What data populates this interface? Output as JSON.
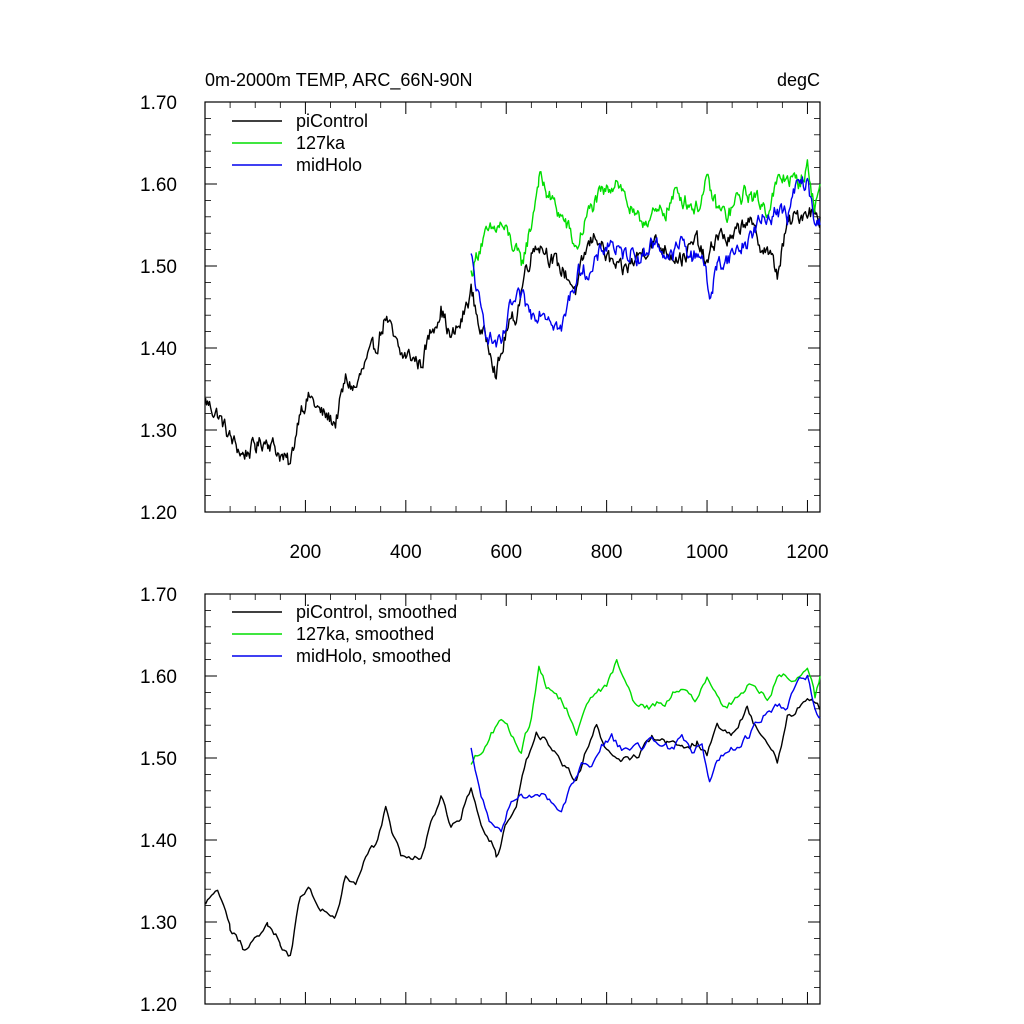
{
  "chart_data": [
    {
      "type": "line",
      "title": "0m-2000m TEMP, ARC_66N-90N",
      "units": "degC",
      "xlim": [
        0,
        1225
      ],
      "ylim": [
        1.2,
        1.7
      ],
      "yticks": [
        "1.20",
        "1.30",
        "1.40",
        "1.50",
        "1.60",
        "1.70"
      ],
      "ytick_values": [
        1.2,
        1.3,
        1.4,
        1.5,
        1.6,
        1.7
      ],
      "xticks": [
        "200",
        "400",
        "600",
        "800",
        "1000",
        "1200"
      ],
      "xtick_values": [
        200,
        400,
        600,
        800,
        1000,
        1200
      ],
      "show_xtick_labels": true,
      "legend_position": "top-left",
      "series": [
        {
          "name": "piControl",
          "color": "#000000",
          "x": [
            1,
            25,
            50,
            75,
            100,
            125,
            150,
            170,
            190,
            210,
            230,
            260,
            280,
            300,
            320,
            340,
            360,
            375,
            390,
            410,
            430,
            450,
            470,
            490,
            510,
            530,
            550,
            570,
            580,
            590,
            600,
            620,
            640,
            660,
            680,
            700,
            720,
            740,
            760,
            780,
            800,
            830,
            860,
            890,
            920,
            950,
            980,
            1000,
            1020,
            1050,
            1080,
            1100,
            1120,
            1140,
            1160,
            1180,
            1200,
            1225
          ],
          "values": [
            1.335,
            1.32,
            1.29,
            1.27,
            1.28,
            1.29,
            1.27,
            1.255,
            1.33,
            1.34,
            1.32,
            1.31,
            1.36,
            1.35,
            1.38,
            1.4,
            1.44,
            1.41,
            1.39,
            1.39,
            1.38,
            1.42,
            1.45,
            1.41,
            1.43,
            1.47,
            1.42,
            1.4,
            1.37,
            1.39,
            1.42,
            1.44,
            1.5,
            1.53,
            1.52,
            1.5,
            1.49,
            1.47,
            1.52,
            1.54,
            1.51,
            1.49,
            1.51,
            1.53,
            1.52,
            1.51,
            1.53,
            1.5,
            1.54,
            1.53,
            1.56,
            1.53,
            1.52,
            1.49,
            1.55,
            1.56,
            1.57,
            1.56
          ]
        },
        {
          "name": "127ka",
          "color": "#00dd00",
          "x": [
            530,
            550,
            570,
            590,
            610,
            630,
            650,
            665,
            680,
            700,
            720,
            740,
            760,
            780,
            800,
            820,
            840,
            860,
            880,
            900,
            920,
            940,
            960,
            980,
            1000,
            1020,
            1040,
            1060,
            1080,
            1100,
            1120,
            1140,
            1160,
            1180,
            1200,
            1215,
            1225
          ],
          "values": [
            1.49,
            1.53,
            1.54,
            1.55,
            1.53,
            1.5,
            1.55,
            1.61,
            1.59,
            1.57,
            1.55,
            1.52,
            1.56,
            1.58,
            1.59,
            1.61,
            1.58,
            1.55,
            1.56,
            1.56,
            1.57,
            1.59,
            1.58,
            1.57,
            1.6,
            1.57,
            1.56,
            1.58,
            1.59,
            1.58,
            1.57,
            1.6,
            1.61,
            1.6,
            1.62,
            1.57,
            1.6
          ]
        },
        {
          "name": "midHolo",
          "color": "#0000ee",
          "x": [
            530,
            550,
            570,
            590,
            610,
            630,
            650,
            670,
            690,
            710,
            730,
            750,
            770,
            790,
            810,
            830,
            850,
            870,
            890,
            910,
            930,
            950,
            970,
            990,
            1005,
            1020,
            1040,
            1060,
            1080,
            1100,
            1120,
            1140,
            1160,
            1180,
            1200,
            1215,
            1225
          ],
          "values": [
            1.51,
            1.44,
            1.41,
            1.4,
            1.45,
            1.46,
            1.44,
            1.45,
            1.44,
            1.42,
            1.47,
            1.5,
            1.49,
            1.52,
            1.53,
            1.51,
            1.52,
            1.51,
            1.53,
            1.52,
            1.51,
            1.53,
            1.51,
            1.52,
            1.46,
            1.5,
            1.51,
            1.52,
            1.53,
            1.55,
            1.56,
            1.57,
            1.56,
            1.6,
            1.6,
            1.55,
            1.55
          ]
        }
      ]
    },
    {
      "type": "line",
      "title": "",
      "units": "",
      "xlim": [
        0,
        1225
      ],
      "ylim": [
        1.2,
        1.7
      ],
      "yticks": [
        "1.20",
        "1.30",
        "1.40",
        "1.50",
        "1.60",
        "1.70"
      ],
      "ytick_values": [
        1.2,
        1.3,
        1.4,
        1.5,
        1.6,
        1.7
      ],
      "xticks": [],
      "xtick_values": [
        200,
        400,
        600,
        800,
        1000,
        1200
      ],
      "show_xtick_labels": false,
      "legend_position": "top-left",
      "series": [
        {
          "name": "piControl, smoothed",
          "color": "#000000",
          "x": [
            1,
            25,
            50,
            75,
            100,
            125,
            150,
            170,
            190,
            210,
            230,
            260,
            280,
            300,
            320,
            340,
            360,
            375,
            390,
            410,
            430,
            450,
            470,
            490,
            510,
            530,
            550,
            570,
            580,
            590,
            600,
            620,
            640,
            660,
            680,
            700,
            720,
            740,
            760,
            780,
            800,
            830,
            860,
            890,
            920,
            950,
            980,
            1000,
            1020,
            1050,
            1080,
            1100,
            1120,
            1140,
            1160,
            1180,
            1200,
            1225
          ],
          "values": [
            1.32,
            1.34,
            1.29,
            1.27,
            1.28,
            1.295,
            1.275,
            1.26,
            1.33,
            1.34,
            1.32,
            1.31,
            1.355,
            1.345,
            1.375,
            1.395,
            1.44,
            1.405,
            1.38,
            1.38,
            1.38,
            1.42,
            1.45,
            1.415,
            1.43,
            1.465,
            1.42,
            1.4,
            1.38,
            1.395,
            1.42,
            1.44,
            1.5,
            1.53,
            1.52,
            1.5,
            1.485,
            1.47,
            1.51,
            1.54,
            1.51,
            1.495,
            1.505,
            1.525,
            1.52,
            1.51,
            1.52,
            1.5,
            1.54,
            1.53,
            1.56,
            1.535,
            1.52,
            1.495,
            1.55,
            1.56,
            1.57,
            1.56
          ]
        },
        {
          "name": "127ka, smoothed",
          "color": "#00dd00",
          "x": [
            530,
            550,
            570,
            590,
            610,
            630,
            650,
            665,
            680,
            700,
            720,
            740,
            760,
            780,
            800,
            820,
            840,
            860,
            880,
            900,
            920,
            940,
            960,
            980,
            1000,
            1020,
            1040,
            1060,
            1080,
            1100,
            1120,
            1140,
            1160,
            1180,
            1200,
            1215,
            1225
          ],
          "values": [
            1.49,
            1.51,
            1.53,
            1.55,
            1.53,
            1.51,
            1.55,
            1.61,
            1.59,
            1.58,
            1.56,
            1.53,
            1.56,
            1.58,
            1.59,
            1.62,
            1.59,
            1.56,
            1.56,
            1.565,
            1.57,
            1.585,
            1.575,
            1.57,
            1.6,
            1.575,
            1.56,
            1.575,
            1.59,
            1.585,
            1.575,
            1.595,
            1.6,
            1.595,
            1.615,
            1.575,
            1.6
          ]
        },
        {
          "name": "midHolo, smoothed",
          "color": "#0000ee",
          "x": [
            530,
            550,
            570,
            590,
            610,
            630,
            650,
            670,
            690,
            710,
            730,
            750,
            770,
            790,
            810,
            830,
            850,
            870,
            890,
            910,
            930,
            950,
            970,
            990,
            1005,
            1020,
            1040,
            1060,
            1080,
            1100,
            1120,
            1140,
            1160,
            1180,
            1200,
            1215,
            1225
          ],
          "values": [
            1.51,
            1.45,
            1.42,
            1.41,
            1.45,
            1.46,
            1.45,
            1.455,
            1.445,
            1.43,
            1.47,
            1.495,
            1.49,
            1.515,
            1.525,
            1.51,
            1.515,
            1.51,
            1.525,
            1.52,
            1.51,
            1.525,
            1.51,
            1.515,
            1.47,
            1.5,
            1.505,
            1.515,
            1.525,
            1.545,
            1.555,
            1.565,
            1.56,
            1.595,
            1.6,
            1.555,
            1.55
          ]
        }
      ]
    }
  ]
}
